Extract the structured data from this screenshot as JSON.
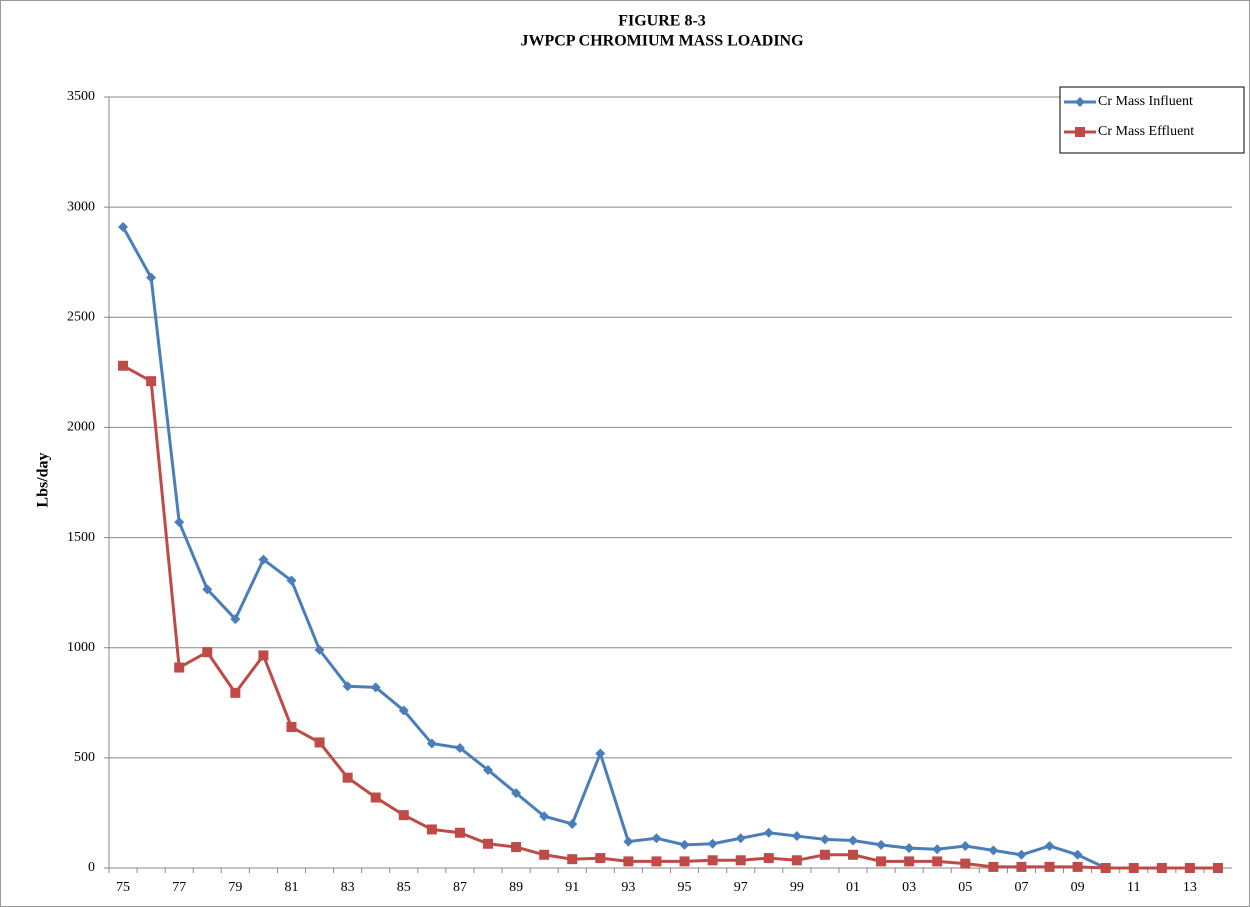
{
  "chart_data": {
    "type": "line",
    "title": [
      "FIGURE 8-3",
      "JWPCP CHROMIUM MASS LOADING"
    ],
    "y_label": "Lbs/day",
    "categories": [
      "75",
      null,
      "77",
      null,
      "79",
      null,
      "81",
      null,
      "83",
      null,
      "85",
      null,
      "87",
      null,
      "89",
      null,
      "91",
      null,
      "93",
      null,
      "95",
      null,
      "97",
      null,
      "99",
      null,
      "01",
      null,
      "03",
      null,
      "05",
      null,
      "07",
      null,
      "09",
      null,
      "11",
      null,
      "13",
      null
    ],
    "series": [
      {
        "name": "Cr Mass Influent",
        "color": "#4a7ebb",
        "marker": "diamond",
        "values": [
          2910,
          2680,
          1570,
          1265,
          1130,
          1400,
          1305,
          990,
          825,
          820,
          715,
          565,
          545,
          445,
          340,
          235,
          200,
          520,
          120,
          135,
          105,
          110,
          135,
          160,
          145,
          130,
          125,
          105,
          90,
          85,
          100,
          80,
          60,
          100,
          60,
          0,
          null,
          null,
          null,
          null
        ]
      },
      {
        "name": "Cr Mass Effluent",
        "color": "#be4b48",
        "marker": "square",
        "values": [
          2280,
          2210,
          910,
          980,
          795,
          965,
          640,
          570,
          410,
          320,
          240,
          175,
          160,
          110,
          95,
          60,
          40,
          45,
          30,
          30,
          30,
          35,
          35,
          45,
          35,
          60,
          60,
          30,
          30,
          30,
          20,
          5,
          5,
          5,
          5,
          0,
          0,
          0,
          0,
          0
        ]
      }
    ],
    "ylim": [
      0,
      3500
    ],
    "yticks": [
      0,
      500,
      1000,
      1500,
      2000,
      2500,
      3000,
      3500
    ],
    "grid": true,
    "legend": "top-right"
  }
}
